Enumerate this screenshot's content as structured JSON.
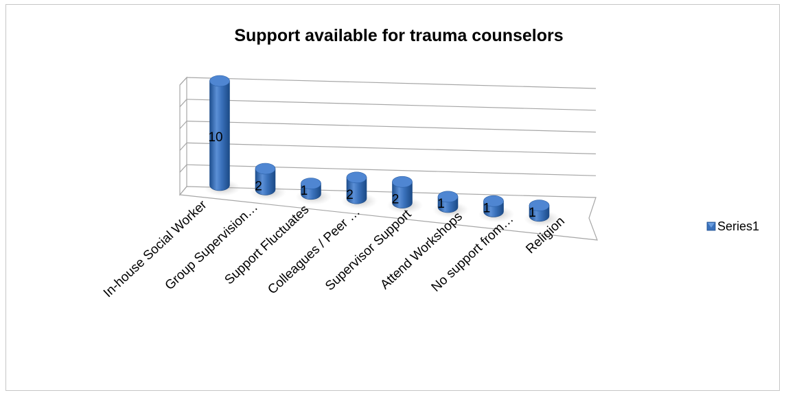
{
  "chart_data": {
    "type": "bar",
    "title": "Support available for trauma counselors",
    "categories": [
      "In-house Social Worker",
      "Group Supervision…",
      "Support Fluctuates",
      "Colleagues / Peer …",
      "Supervisor Support",
      "Attend Workshops",
      "No support from…",
      "Religion"
    ],
    "series": [
      {
        "name": "Series1",
        "values": [
          10,
          2,
          1,
          2,
          2,
          1,
          1,
          1
        ]
      }
    ],
    "ylim": [
      0,
      10
    ],
    "grid": true,
    "legend": "right",
    "colors": {
      "bar": "#3a71bb",
      "bar_light": "#6a9ee0",
      "bar_dark": "#1e4f8f",
      "grid": "#a6a6a6"
    }
  }
}
